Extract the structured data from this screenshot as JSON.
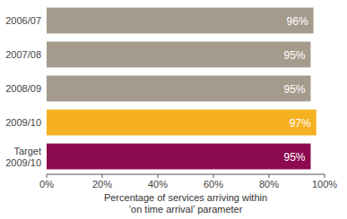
{
  "chart_data": {
    "type": "bar",
    "orientation": "horizontal",
    "categories": [
      "2006/07",
      "2007/08",
      "2008/09",
      "2009/10",
      "Target\n2009/10"
    ],
    "values": [
      96,
      95,
      95,
      97,
      95
    ],
    "value_labels": [
      "96%",
      "95%",
      "95%",
      "97%",
      "95%"
    ],
    "colors": [
      "#a59b8c",
      "#a59b8c",
      "#a59b8c",
      "#f5b122",
      "#8c0a4f"
    ],
    "x_label": "Percentage of services arriving within\n‘on time arrival’ parameter",
    "xlim": [
      0,
      100
    ],
    "xticks": [
      {
        "value": 0,
        "label": "0%"
      },
      {
        "value": 20,
        "label": "20%"
      },
      {
        "value": 40,
        "label": "40%"
      },
      {
        "value": 60,
        "label": "60%"
      },
      {
        "value": 80,
        "label": "80%"
      },
      {
        "value": 100,
        "label": "100%"
      }
    ],
    "grid": false,
    "data_labels": true
  }
}
